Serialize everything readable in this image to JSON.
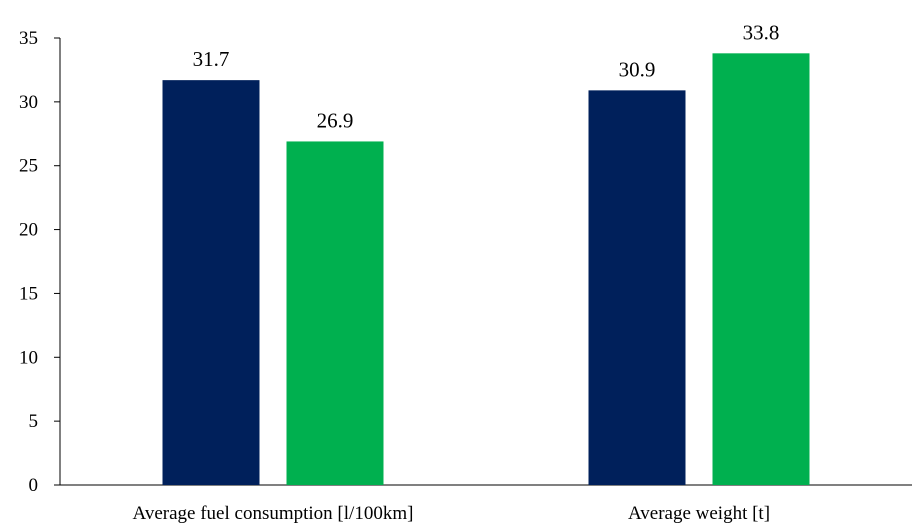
{
  "chart_data": {
    "type": "bar",
    "categories": [
      "Average fuel consumption [l/100km]",
      "Average weight [t]"
    ],
    "series": [
      {
        "values": [
          31.7,
          30.9
        ],
        "color": "#00205b"
      },
      {
        "values": [
          26.9,
          33.8
        ],
        "color": "#00b04f"
      }
    ],
    "yticks": [
      "0",
      "5",
      "10",
      "15",
      "20",
      "25",
      "30",
      "35"
    ],
    "ylim": [
      0,
      35
    ],
    "grid": false,
    "legend": "none"
  }
}
